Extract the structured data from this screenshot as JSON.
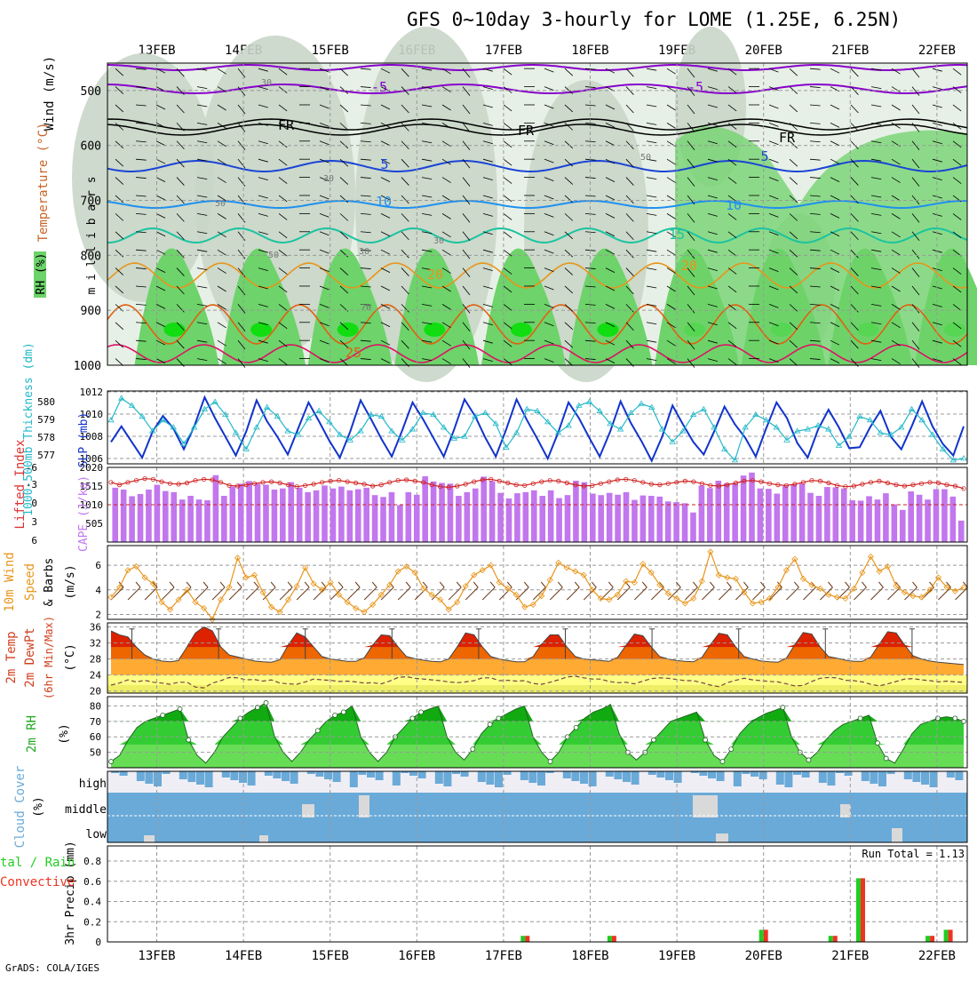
{
  "title": "GFS 0~10day 3-hourly for LOME (1.25E, 6.25N)",
  "credit": "GrADS: COLA/IGES",
  "colors": {
    "rh_light": "#e7f0e6",
    "rh_mid": "#c9d6c8",
    "rh_green": "#6dd36a",
    "rh_bright": "#11dd11",
    "purple": "#8800cc",
    "freeze": "#000000",
    "blue5": "#1a44d6",
    "blue10": "#1e90f0",
    "teal15": "#1bc3a0",
    "orange20": "#e8951a",
    "orange25": "#e06010",
    "red30": "#dd1166",
    "slp": "#1133cc",
    "thick": "#22b8c8",
    "li": "#d02020",
    "cape": "#c277ee",
    "wind": "#e8951a",
    "barb": "#6b3a1a",
    "temp_fill_hi": "#dd2200",
    "temp_fill_mid": "#ee6600",
    "temp_fill_lo": "#ffaa33",
    "dewpt_fill": "#ffff88",
    "dewpt_band": "#eeee66",
    "rh2m_dark": "#11aa11",
    "rh2m_mid": "#33cc33",
    "rh2m_light": "#66dd55",
    "cloud": "#6aaad8",
    "cloud_clear": "#f0eef5",
    "cloud_gray": "#d9d9d9",
    "precip_total": "#22cc22",
    "precip_conv": "#ee3322"
  },
  "chart_data": [
    {
      "type": "heatmap",
      "panel": "upper-air cross-section",
      "xlabels": [
        "13FEB",
        "14FEB",
        "15FEB",
        "16FEB",
        "17FEB",
        "18FEB",
        "19FEB",
        "20FEB",
        "21FEB",
        "22FEB"
      ],
      "ylabel": "m i l l i b a r s",
      "side_labels": [
        "Wind (m/s)",
        "Temperature (°C)",
        "RH (%)"
      ],
      "yticks": [
        500,
        600,
        700,
        800,
        900,
        1000
      ],
      "ylim": [
        1000,
        450
      ],
      "contour_labels": [
        "-5",
        "-5",
        "FR",
        "FR",
        "FR",
        "5",
        "5",
        "10",
        "10",
        "15",
        "20",
        "20",
        "25",
        "30",
        "30",
        "30",
        "30",
        "50",
        "50",
        "50",
        "70"
      ],
      "isotherms_c": [
        -5,
        0,
        5,
        10,
        15,
        20,
        25,
        30
      ]
    },
    {
      "type": "line",
      "panel": "thickness / SLP",
      "left_label": "1000-500mb Thickness (dm)",
      "right_label": "SLP (mb)",
      "left_ticks": [
        "577",
        "578",
        "579",
        "580"
      ],
      "right_ticks": [
        "1006",
        "1008",
        "1010",
        "1012"
      ],
      "slp_ylim": [
        1005.4,
        1012.4
      ],
      "thick_ylim": [
        576.6,
        580.6
      ],
      "series": [
        {
          "values": [
            1007.5,
            1009.0,
            1007.5,
            1006.0,
            1008.5,
            1010.0,
            1008.8,
            1006.8,
            1009.0,
            1011.8,
            1009.8,
            1008.0,
            1006.2,
            1008.5,
            1011.5,
            1009.5,
            1008.0,
            1006.3,
            1008.8,
            1011.3,
            1009.5,
            1007.6,
            1006.0,
            1008.5,
            1011.5,
            1009.7,
            1007.8,
            1006.1,
            1008.6,
            1011.3,
            1009.7,
            1007.9,
            1006.1,
            1008.7,
            1011.6,
            1010.0,
            1007.9,
            1006.1,
            1008.7,
            1011.6,
            1009.6,
            1007.8,
            1005.9,
            1008.4,
            1011.3,
            1009.8,
            1007.9,
            1006.1,
            1008.5,
            1011.4,
            1009.3,
            1007.6,
            1005.7,
            1008.0,
            1011.0,
            1009.2,
            1007.5,
            1006.3,
            1008.5,
            1010.9,
            1009.2,
            1007.9,
            1006.1,
            1008.8,
            1011.3,
            1009.8,
            1007.4,
            1006.0,
            1008.7,
            1010.6,
            1008.9,
            1006.9,
            1007.0,
            1008.9,
            1010.5,
            1008.0,
            1006.8,
            1009.0,
            1011.4,
            1009.0,
            1007.3,
            1006.2,
            1009.0
          ]
        },
        {
          "values": [
            579.0,
            580.2,
            579.8,
            579.2,
            578.4,
            579.0,
            578.6,
            577.7,
            578.6,
            579.6,
            580.0,
            579.3,
            578.3,
            577.4,
            578.6,
            579.7,
            579.2,
            578.4,
            578.2,
            579.1,
            579.5,
            578.9,
            578.2,
            577.9,
            578.4,
            579.3,
            579.2,
            578.4,
            577.9,
            578.5,
            579.4,
            579.3,
            578.6,
            578.0,
            578.1,
            579.2,
            579.4,
            578.8,
            577.5,
            578.3,
            579.6,
            579.5,
            578.9,
            578.3,
            578.7,
            579.8,
            580.0,
            579.5,
            578.8,
            578.5,
            579.4,
            579.9,
            579.7,
            578.5,
            577.8,
            578.4,
            579.3,
            579.6,
            578.6,
            577.4,
            576.8,
            578.6,
            579.3,
            579.0,
            578.6,
            577.9,
            578.4,
            578.5,
            578.7,
            578.5,
            577.6,
            578.1,
            579.2,
            579.0,
            578.3,
            578.2,
            578.6,
            579.6,
            579.0,
            578.2,
            577.4,
            576.8,
            576.9
          ]
        }
      ]
    },
    {
      "type": "bar",
      "panel": "lifted index / CAPE",
      "left_label": "Lifted Index",
      "right_label": "CAPE (J/kg)",
      "left_ticks": [
        "-3",
        "0",
        "3",
        "6"
      ],
      "left_top": "-6",
      "right_ticks": [
        "505",
        "1010",
        "1515",
        "2020"
      ],
      "cape_ylim": [
        0,
        2020
      ],
      "li_ylim": [
        -6,
        6
      ],
      "series": [
        {
          "values": [
            1470,
            1420,
            1240,
            1300,
            1420,
            1550,
            1380,
            1350,
            1150,
            1250,
            1150,
            1130,
            1810,
            1250,
            1500,
            1580,
            1650,
            1580,
            1550,
            1420,
            1450,
            1620,
            1470,
            1350,
            1400,
            1530,
            1450,
            1500,
            1400,
            1430,
            1470,
            1270,
            1220,
            1350,
            1000,
            1350,
            1280,
            1780,
            1640,
            1600,
            1580,
            1250,
            1350,
            1450,
            1770,
            1650,
            1330,
            1180,
            1320,
            1350,
            1400,
            1250,
            1400,
            1190,
            1270,
            1660,
            1620,
            1310,
            1270,
            1330,
            1280,
            1350,
            1140,
            1260,
            1250,
            1230,
            1100,
            1080,
            1050,
            800,
            1530,
            1460,
            1660,
            1590,
            1580,
            1800,
            1880,
            1450,
            1440,
            1310,
            1520,
            1560,
            1580,
            1330,
            1250,
            1490,
            1480,
            1450,
            1130,
            1120,
            1240,
            1150,
            1320,
            1020,
            870,
            1370,
            1280,
            1150,
            1430,
            1430,
            1230,
            580
          ]
        },
        {
          "values": [
            -3.6,
            -3.2,
            -3.6,
            -3.9,
            -4.2,
            -4.1,
            -3.7,
            -3.4,
            -3.3,
            -3.5,
            -3.9,
            -4.1,
            -4.0,
            -3.6,
            -3.1,
            -3.0,
            -3.2,
            -3.4,
            -3.6,
            -3.7,
            -3.5,
            -3.2,
            -2.9,
            -3.1,
            -3.3,
            -3.6,
            -3.8,
            -3.9,
            -3.7,
            -3.5,
            -3.3,
            -3.0,
            -3.2,
            -3.6,
            -3.9,
            -4.0,
            -3.8,
            -3.6,
            -3.2,
            -2.9,
            -2.8,
            -3.0,
            -3.3,
            -3.7,
            -4.0,
            -4.1,
            -3.8,
            -3.5,
            -3.2,
            -3.1,
            -3.4,
            -3.7,
            -3.9,
            -3.8,
            -3.5,
            -3.2,
            -3.0,
            -3.1,
            -3.4,
            -3.7,
            -4.0,
            -4.1,
            -3.9,
            -3.6,
            -3.3,
            -3.2,
            -3.4,
            -3.6,
            -3.8,
            -3.7,
            -3.4,
            -3.1,
            -3.0,
            -3.2,
            -3.5,
            -3.8,
            -3.9,
            -3.7,
            -3.4,
            -3.2,
            -3.1,
            -3.3,
            -3.6,
            -3.9,
            -3.8,
            -3.5,
            -3.1,
            -2.9,
            -3.0,
            -3.3,
            -3.6,
            -3.8,
            -3.5,
            -3.2,
            -3.0,
            -3.2,
            -3.4,
            -3.6,
            -3.5,
            -3.2,
            -3.0,
            -2.6
          ]
        }
      ]
    },
    {
      "type": "line",
      "panel": "10m wind",
      "left_label": "10m Wind Speed & Barbs (m/s)",
      "yticks": [
        "2",
        "4",
        "6"
      ],
      "ylim": [
        1.6,
        7.6
      ],
      "series": [
        {
          "values": [
            3.4,
            4.2,
            5.6,
            5.9,
            5.0,
            4.5,
            3.0,
            2.4,
            3.2,
            4.0,
            3.0,
            2.5,
            1.6,
            3.2,
            4.2,
            6.6,
            5.0,
            5.2,
            3.8,
            2.6,
            2.2,
            3.2,
            4.3,
            5.8,
            4.5,
            4.0,
            4.6,
            3.6,
            3.0,
            2.5,
            2.2,
            2.8,
            3.6,
            4.4,
            5.5,
            5.9,
            5.4,
            4.1,
            3.6,
            3.2,
            2.4,
            3.0,
            4.3,
            5.2,
            5.6,
            6.0,
            4.6,
            4.1,
            3.6,
            2.6,
            2.8,
            3.5,
            4.8,
            6.2,
            5.8,
            5.5,
            5.2,
            4.0,
            3.3,
            3.2,
            3.6,
            4.7,
            4.6,
            6.1,
            5.4,
            4.4,
            3.7,
            3.3,
            2.9,
            3.3,
            4.7,
            7.1,
            5.2,
            5.0,
            4.9,
            3.8,
            2.9,
            3.0,
            3.3,
            4.2,
            5.6,
            6.5,
            4.9,
            4.4,
            4.1,
            3.6,
            3.4,
            3.3,
            4.1,
            5.4,
            6.7,
            5.5,
            5.9,
            4.3,
            3.8,
            3.5,
            3.4,
            4.0,
            5.0,
            4.2,
            3.9,
            4.2
          ]
        }
      ]
    },
    {
      "type": "area",
      "panel": "2m temperature / dewpoint",
      "left_label": "2m Temp / 2m DewPt (6hr Min/Max) (°C)",
      "yticks": [
        "20",
        "24",
        "28",
        "32",
        "36"
      ],
      "ylim": [
        19.5,
        37
      ],
      "series": [
        {
          "values": [
            35,
            34,
            33.5,
            31,
            29,
            28,
            27.5,
            27.3,
            27.6,
            31,
            34.5,
            36,
            35,
            31,
            29,
            28.5,
            28,
            27.5,
            27.3,
            27.2,
            27.8,
            31.5,
            34.5,
            33.5,
            31,
            28.6,
            28,
            27.7,
            27.4,
            27.4,
            28.3,
            31.5,
            34,
            33.8,
            31,
            28.6,
            28.1,
            27.7,
            27.4,
            27.3,
            28,
            31,
            34.5,
            34,
            31,
            28.6,
            28,
            27.6,
            27.3,
            27.3,
            28.6,
            31.7,
            34,
            34,
            31,
            28.6,
            28,
            27.8,
            27.6,
            27.4,
            28.4,
            31.4,
            34.2,
            33.8,
            31,
            28.6,
            28,
            27.6,
            27.4,
            27.3,
            28.4,
            31.6,
            34.4,
            34,
            31,
            28.6,
            28,
            27.5,
            27.3,
            27.2,
            28.2,
            31.6,
            34.6,
            34.2,
            31,
            28.6,
            28.2,
            27.7,
            27.4,
            27.4,
            28.5,
            31.7,
            34.8,
            34.5,
            31.5,
            28.8,
            28,
            27.5,
            27.2,
            27,
            26.8,
            26.6
          ]
        },
        {
          "values": [
            21.5,
            22,
            22.8,
            22.3,
            22.7,
            22.2,
            22,
            21.7,
            22.2,
            22.2,
            21,
            20.8,
            22,
            22.6,
            23.4,
            23.3,
            22.8,
            22.9,
            22.5,
            22.8,
            22,
            21.8,
            21.7,
            22.3,
            23,
            22.8,
            22.7,
            22.4,
            22.5,
            22.3,
            22,
            22.1,
            21.8,
            22.5,
            23.4,
            23.6,
            23.2,
            23,
            22.8,
            22.6,
            22.3,
            22.1,
            22.3,
            22.6,
            23.3,
            23.3,
            22.6,
            22.7,
            22.5,
            22.6,
            21.9,
            21.7,
            22.2,
            22.8,
            23.5,
            23.7,
            23.3,
            23,
            23,
            22.4,
            22.1,
            22.2,
            21.8,
            22.5,
            23.1,
            23.3,
            23.2,
            22.9,
            22.6,
            22.6,
            22.1,
            21.5,
            21.1,
            22.1,
            22.7,
            23.2,
            22.8,
            22.6,
            22.4,
            22.3,
            21.8,
            21.3,
            21.4,
            22.4,
            23.2,
            23.4,
            23.3,
            22.7,
            22.6,
            22.3,
            21.7,
            21.3,
            21.8,
            22.4,
            23,
            23.1,
            22.8,
            22.6,
            22.3,
            22.5,
            22.3,
            22.2
          ]
        }
      ]
    },
    {
      "type": "area",
      "panel": "2m relative humidity",
      "left_label": "2m RH (%)",
      "yticks": [
        "50",
        "60",
        "70",
        "80"
      ],
      "ylim": [
        40,
        86
      ],
      "series": [
        {
          "values": [
            44,
            48,
            58,
            66,
            70,
            72,
            74,
            76,
            78,
            58,
            48,
            43,
            50,
            60,
            66,
            72,
            76,
            79,
            82,
            60,
            50,
            44,
            50,
            58,
            64,
            70,
            74,
            76,
            80,
            60,
            50,
            44,
            50,
            60,
            66,
            72,
            76,
            78,
            80,
            60,
            50,
            45,
            52,
            62,
            68,
            72,
            75,
            78,
            80,
            60,
            50,
            44,
            50,
            60,
            66,
            72,
            76,
            78,
            81,
            62,
            50,
            45,
            50,
            58,
            64,
            70,
            72,
            74,
            76,
            58,
            48,
            44,
            52,
            62,
            68,
            72,
            75,
            77,
            79,
            60,
            50,
            45,
            50,
            58,
            64,
            68,
            70,
            72,
            74,
            56,
            46,
            43,
            52,
            62,
            68,
            70,
            72,
            73,
            72,
            70
          ]
        }
      ]
    },
    {
      "type": "heatmap",
      "panel": "cloud cover",
      "left_label": "Cloud Cover (%)",
      "row_labels": [
        "high",
        "middle",
        "low"
      ]
    },
    {
      "type": "bar",
      "panel": "3hr precipitation",
      "left_label": "3hr Precip (mm)",
      "side_label": "Total / Rain / Convective",
      "annotation": "Run Total = 1.13",
      "yticks": [
        "0",
        "0.2",
        "0.4",
        "0.6",
        "0.8"
      ],
      "ylim": [
        0,
        0.95
      ],
      "x": [
        5.25,
        6.25,
        8.0,
        8.8,
        9.12,
        9.92,
        10.13
      ],
      "values": [
        0.06,
        0.06,
        0.12,
        0.06,
        0.63,
        0.06,
        0.12
      ]
    }
  ]
}
